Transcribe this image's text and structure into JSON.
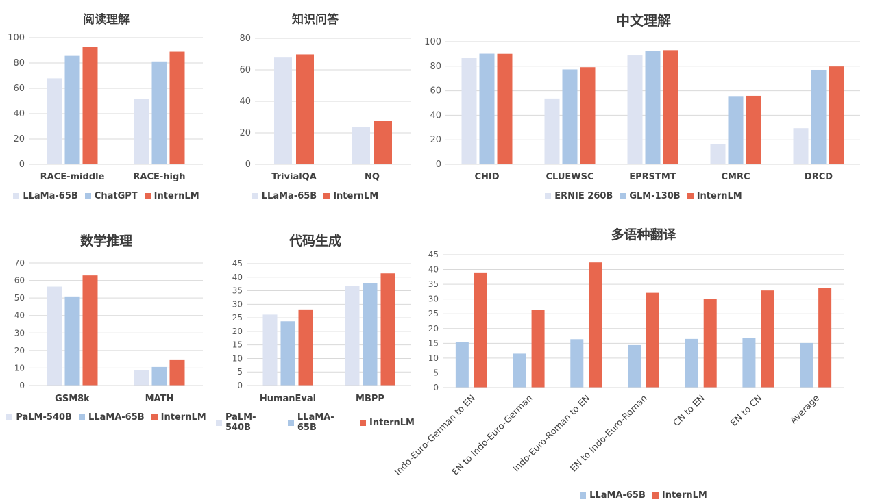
{
  "colors": {
    "llama": "#dde3f2",
    "blue": "#aac6e6",
    "intern": "#e8674e",
    "grid": "#d9d9d9",
    "axis_text": "#595959",
    "cat_text": "#404040"
  },
  "chart_data": [
    {
      "id": "c1",
      "type": "bar",
      "title": "阅读理解",
      "categories": [
        "RACE-middle",
        "RACE-high"
      ],
      "ylim": [
        0,
        100
      ],
      "yticks": [
        "0",
        "20",
        "40",
        "60",
        "80",
        "100"
      ],
      "grid": true,
      "legend_position": "bottom",
      "series": [
        {
          "name": "LLaMa-65B",
          "color": "#dde3f2",
          "values": [
            67.9,
            51.6
          ]
        },
        {
          "name": "ChatGPT",
          "color": "#aac6e6",
          "values": [
            85.6,
            81.2
          ]
        },
        {
          "name": "InternLM",
          "color": "#e8674e",
          "values": [
            92.7,
            88.9
          ]
        }
      ]
    },
    {
      "id": "c2",
      "type": "bar",
      "title": "知识问答",
      "categories": [
        "TrivialQA",
        "NQ"
      ],
      "ylim": [
        0,
        80
      ],
      "yticks": [
        "0",
        "20",
        "40",
        "60",
        "80"
      ],
      "grid": true,
      "legend_position": "bottom",
      "series": [
        {
          "name": "LLaMa-65B",
          "color": "#dde3f2",
          "values": [
            68.2,
            23.8
          ]
        },
        {
          "name": "InternLM",
          "color": "#e8674e",
          "values": [
            69.8,
            27.6
          ]
        }
      ]
    },
    {
      "id": "c3",
      "type": "bar",
      "title": "中文理解",
      "categories": [
        "CHID",
        "CLUEWSC",
        "EPRSTMT",
        "CMRC",
        "DRCD"
      ],
      "ylim": [
        0,
        100
      ],
      "yticks": [
        "0",
        "20",
        "40",
        "60",
        "80",
        "100"
      ],
      "grid": true,
      "legend_position": "bottom",
      "series": [
        {
          "name": "ERNIE 260B",
          "color": "#dde3f2",
          "values": [
            87.1,
            53.7,
            88.8,
            16.6,
            29.5
          ]
        },
        {
          "name": "GLM-130B",
          "color": "#aac6e6",
          "values": [
            90.2,
            77.4,
            92.5,
            55.7,
            77.1
          ]
        },
        {
          "name": "InternLM",
          "color": "#e8674e",
          "values": [
            90.1,
            79.2,
            93.1,
            55.9,
            79.8
          ]
        }
      ]
    },
    {
      "id": "c4",
      "type": "bar",
      "title": "数学推理",
      "categories": [
        "GSM8k",
        "MATH"
      ],
      "ylim": [
        0,
        70
      ],
      "yticks": [
        "0",
        "10",
        "20",
        "30",
        "40",
        "50",
        "60",
        "70"
      ],
      "grid": true,
      "legend_position": "bottom",
      "series": [
        {
          "name": "PaLM-540B",
          "color": "#dde3f2",
          "values": [
            56.5,
            8.8
          ]
        },
        {
          "name": "LLaMA-65B",
          "color": "#aac6e6",
          "values": [
            50.9,
            10.6
          ]
        },
        {
          "name": "InternLM",
          "color": "#e8674e",
          "values": [
            62.9,
            14.9
          ]
        }
      ]
    },
    {
      "id": "c5",
      "type": "bar",
      "title": "代码生成",
      "categories": [
        "HumanEval",
        "MBPP"
      ],
      "ylim": [
        0,
        45
      ],
      "yticks": [
        "0",
        "5",
        "10",
        "15",
        "20",
        "25",
        "30",
        "35",
        "40",
        "45"
      ],
      "grid": true,
      "legend_position": "bottom",
      "series": [
        {
          "name": "PaLM-540B",
          "color": "#dde3f2",
          "values": [
            26.2,
            36.8
          ]
        },
        {
          "name": "LLaMA-65B",
          "color": "#aac6e6",
          "values": [
            23.7,
            37.7
          ]
        },
        {
          "name": "InternLM",
          "color": "#e8674e",
          "values": [
            28.1,
            41.4
          ]
        }
      ]
    },
    {
      "id": "c6",
      "type": "bar",
      "title": "多语种翻译",
      "categories": [
        "Indo-Euro-German to EN",
        "EN to Indo-Euro-German",
        "Indo-Euro-Roman to EN",
        "EN to Indo-Euro-Roman",
        "CN to EN",
        "EN to CN",
        "Average"
      ],
      "ylim": [
        0,
        45
      ],
      "yticks": [
        "0",
        "5",
        "10",
        "15",
        "20",
        "25",
        "30",
        "35",
        "40",
        "45"
      ],
      "grid": true,
      "legend_position": "bottom",
      "rotated_labels": true,
      "series": [
        {
          "name": "LLaMA-65B",
          "color": "#aac6e6",
          "values": [
            15.4,
            11.5,
            16.4,
            14.4,
            16.5,
            16.7,
            15.1
          ]
        },
        {
          "name": "InternLM",
          "color": "#e8674e",
          "values": [
            39.0,
            26.3,
            42.4,
            32.1,
            30.1,
            32.9,
            33.8
          ]
        }
      ]
    }
  ]
}
